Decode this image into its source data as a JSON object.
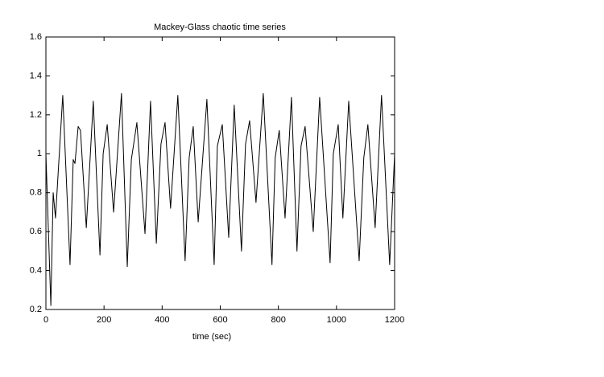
{
  "chart_data": {
    "type": "line",
    "title": "Mackey-Glass chaotic time series",
    "x_label": "time (sec)",
    "x": [
      0,
      17,
      25,
      33,
      58,
      83,
      94,
      100,
      111,
      119,
      139,
      163,
      186,
      197,
      211,
      233,
      260,
      280,
      294,
      313,
      341,
      360,
      380,
      396,
      410,
      429,
      454,
      479,
      493,
      507,
      524,
      554,
      579,
      590,
      607,
      629,
      648,
      673,
      687,
      701,
      723,
      748,
      778,
      789,
      803,
      823,
      845,
      864,
      878,
      892,
      920,
      942,
      978,
      989,
      1006,
      1022,
      1042,
      1078,
      1094,
      1108,
      1133,
      1155,
      1183,
      1200
    ],
    "series": [
      {
        "color": "#000000",
        "values": [
          1.0,
          0.22,
          0.8,
          0.67,
          1.3,
          0.43,
          0.97,
          0.95,
          1.14,
          1.12,
          0.62,
          1.27,
          0.48,
          1.0,
          1.15,
          0.7,
          1.31,
          0.42,
          0.97,
          1.16,
          0.59,
          1.27,
          0.54,
          1.05,
          1.16,
          0.72,
          1.3,
          0.45,
          0.98,
          1.14,
          0.65,
          1.28,
          0.43,
          1.04,
          1.15,
          0.57,
          1.25,
          0.5,
          1.05,
          1.17,
          0.75,
          1.31,
          0.43,
          0.98,
          1.12,
          0.67,
          1.29,
          0.5,
          1.04,
          1.14,
          0.6,
          1.29,
          0.44,
          1.0,
          1.15,
          0.67,
          1.27,
          0.45,
          0.98,
          1.15,
          0.62,
          1.3,
          0.43,
          1.0
        ]
      }
    ],
    "xlim": [
      0,
      1200
    ],
    "xticks": [
      0,
      200,
      400,
      600,
      800,
      1000,
      1200
    ],
    "ylim": [
      0.2,
      1.6
    ],
    "yticks": [
      0.2,
      0.4,
      0.6,
      0.8,
      1,
      1.2,
      1.4,
      1.6
    ]
  }
}
